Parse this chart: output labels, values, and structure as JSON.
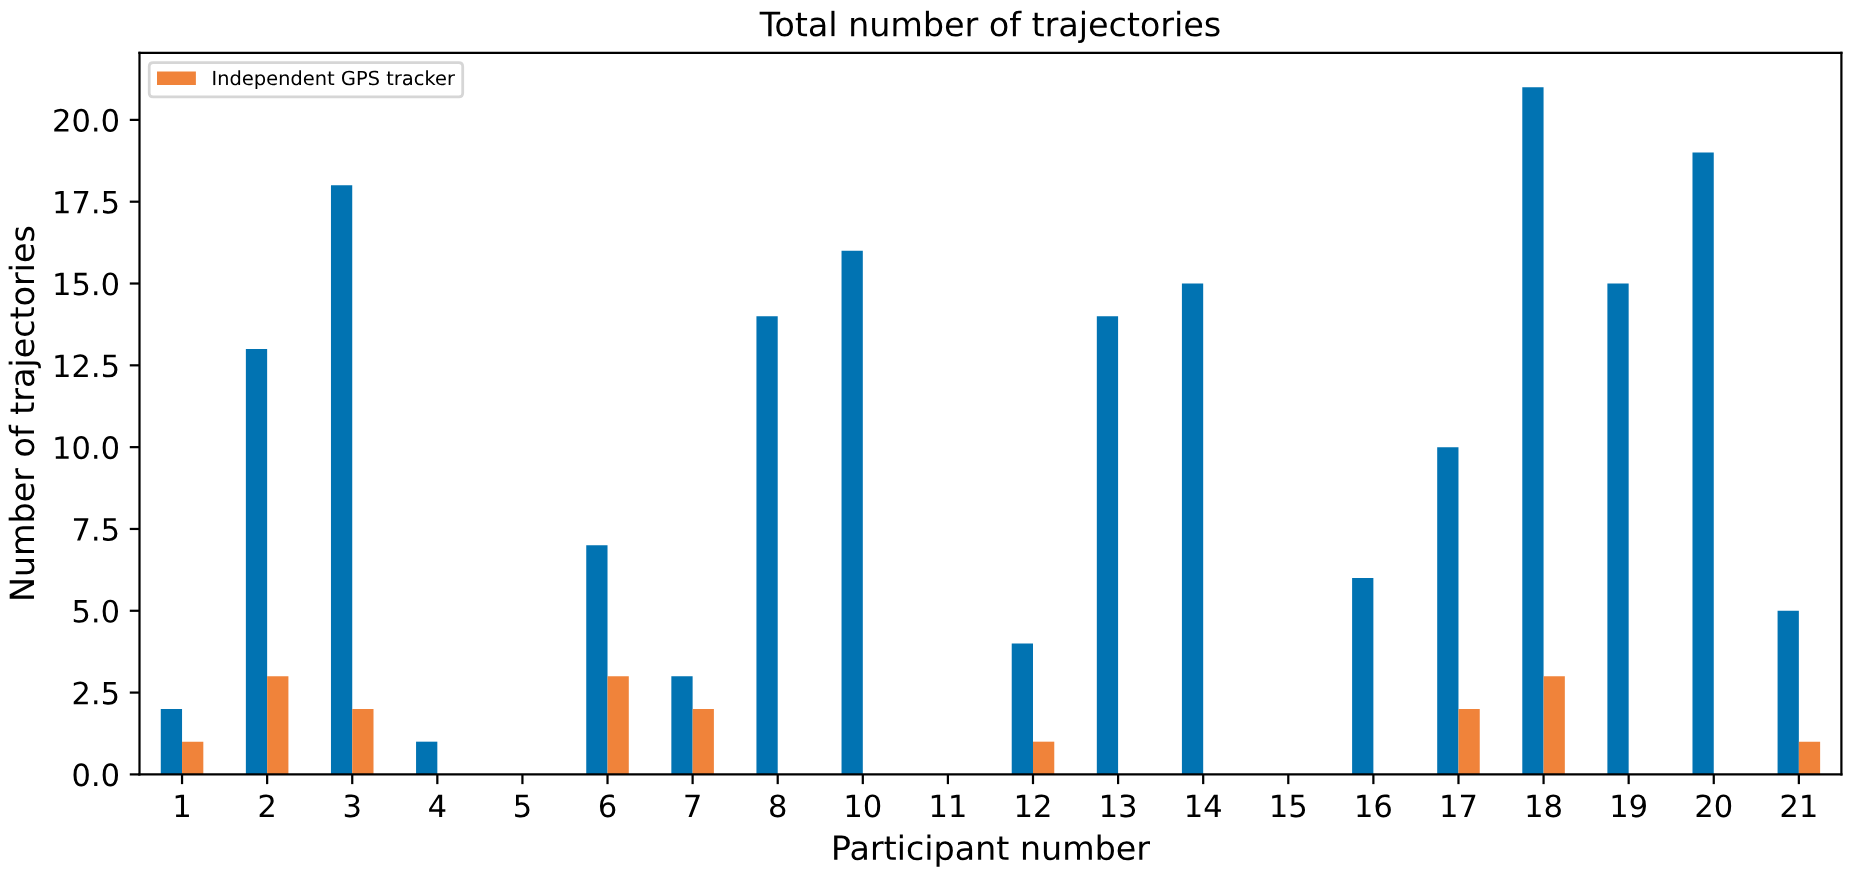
{
  "chart_data": {
    "type": "bar",
    "title": "Total number of trajectories",
    "xlabel": "Participant number",
    "ylabel": "Number of trajectories",
    "categories": [
      "1",
      "2",
      "3",
      "4",
      "5",
      "6",
      "7",
      "8",
      "10",
      "11",
      "12",
      "13",
      "14",
      "15",
      "16",
      "17",
      "18",
      "19",
      "20",
      "21"
    ],
    "series": [
      {
        "color": "#0173b2",
        "values": [
          2,
          13,
          18,
          1,
          0,
          7,
          3,
          14,
          16,
          0,
          4,
          14,
          15,
          0,
          6,
          10,
          21,
          15,
          19,
          5
        ]
      },
      {
        "name": "Independent GPS tracker",
        "color": "#f0833a",
        "values": [
          1,
          3,
          2,
          0,
          0,
          3,
          2,
          0,
          0,
          0,
          1,
          0,
          0,
          0,
          0,
          2,
          3,
          0,
          0,
          1
        ]
      }
    ],
    "ylim": [
      0,
      22.05
    ],
    "yticks": [
      {
        "value": 0,
        "label": "0.0"
      },
      {
        "value": 2.5,
        "label": "2.5"
      },
      {
        "value": 5,
        "label": "5.0"
      },
      {
        "value": 7.5,
        "label": "7.5"
      },
      {
        "value": 10,
        "label": "10.0"
      },
      {
        "value": 12.5,
        "label": "12.5"
      },
      {
        "value": 15,
        "label": "15.0"
      },
      {
        "value": 17.5,
        "label": "17.5"
      },
      {
        "value": 20,
        "label": "20.0"
      }
    ],
    "legend": "upper left",
    "grid": false
  }
}
